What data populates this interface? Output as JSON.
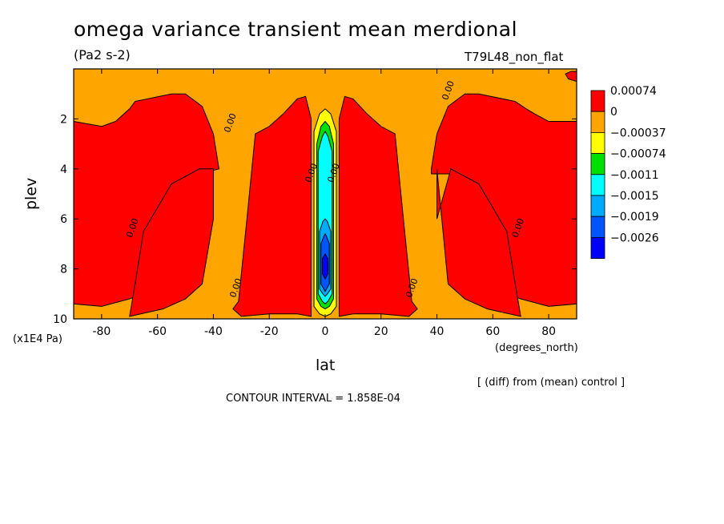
{
  "chart_data": {
    "type": "heatmap",
    "title": "omega variance transient mean merdional",
    "units": "(Pa2 s-2)",
    "run_label": "T79L48_non_flat",
    "xlabel": "lat",
    "x_units": "(degrees_north)",
    "ylabel": "plev",
    "y_units": "(x1E4 Pa)",
    "xlim": [
      -90,
      90
    ],
    "ylim": [
      10,
      0
    ],
    "x_ticks": [
      -80,
      -60,
      -40,
      -20,
      0,
      20,
      40,
      60,
      80
    ],
    "y_ticks": [
      2,
      4,
      6,
      8,
      10
    ],
    "colorbar_labels": [
      "0.00074",
      "0",
      "−0.00037",
      "−0.00074",
      "−0.0011",
      "−0.0015",
      "−0.0019",
      "−0.0026"
    ],
    "colorbar_colors": [
      "#ff0000",
      "#ffa500",
      "#ffff00",
      "#00e000",
      "#00ffff",
      "#00aaff",
      "#0055ff",
      "#0000ff"
    ],
    "contour_label": "0.00",
    "contour_interval_text": "CONTOUR INTERVAL = 1.858E-04",
    "note": "[ (diff) from (mean) control ]",
    "regions": [
      {
        "fill": "#ff0000",
        "lat": [
          -90,
          -80,
          -75,
          -72,
          -70,
          -68,
          -55,
          -50,
          -44,
          -40,
          -38,
          -45,
          -50,
          -60,
          -70,
          -80,
          -90
        ],
        "plev": [
          2.1,
          2.3,
          2.1,
          1.8,
          1.6,
          1.3,
          1.0,
          1.0,
          1.5,
          2.6,
          4.0,
          4.2,
          4.8,
          8.8,
          9.2,
          9.5,
          9.4
        ],
        "path_note": "south red tongue"
      },
      {
        "fill": "#ff0000",
        "lat": [
          -70,
          -58,
          -50,
          -44,
          -40,
          -40,
          -45,
          -55,
          -65,
          -68
        ],
        "plev": [
          9.9,
          9.6,
          9.2,
          8.6,
          6.0,
          4.0,
          4.0,
          4.6,
          6.5,
          8.6
        ]
      },
      {
        "fill": "#ff0000",
        "lat": [
          -31,
          -28,
          -25,
          -20,
          -15,
          -10,
          -7,
          -5,
          -5,
          -10,
          -20,
          -30,
          -33
        ],
        "plev": [
          9.3,
          6.0,
          2.6,
          2.3,
          1.8,
          1.2,
          1.1,
          2.0,
          9.9,
          9.8,
          9.8,
          9.9,
          9.6
        ]
      },
      {
        "fill": "#ff0000",
        "lat": [
          5,
          7,
          10,
          15,
          20,
          25,
          28,
          31,
          33,
          30,
          20,
          10,
          5
        ],
        "plev": [
          2.0,
          1.1,
          1.2,
          1.8,
          2.3,
          2.6,
          6.0,
          9.3,
          9.6,
          9.9,
          9.8,
          9.8,
          9.9
        ]
      },
      {
        "fill": "#ff0000",
        "lat": [
          38,
          40,
          44,
          50,
          55,
          68,
          72,
          75,
          80,
          90,
          90,
          80,
          70,
          60,
          50,
          45,
          38
        ],
        "plev": [
          4.0,
          2.6,
          1.5,
          1.0,
          1.0,
          1.3,
          1.6,
          1.8,
          2.1,
          2.1,
          9.4,
          9.5,
          9.2,
          8.8,
          4.8,
          4.2,
          4.2
        ]
      },
      {
        "fill": "#ff0000",
        "lat": [
          40,
          40,
          45,
          55,
          65,
          68,
          70,
          58,
          50,
          44
        ],
        "plev": [
          4.0,
          6.0,
          4.0,
          4.6,
          6.5,
          8.6,
          9.9,
          9.6,
          9.2,
          8.6
        ]
      },
      {
        "fill": "#ff0000",
        "lat": [
          86,
          88,
          90,
          90,
          87
        ],
        "plev": [
          0.2,
          0.1,
          0.1,
          0.5,
          0.4
        ]
      },
      {
        "fill": "#ffff00",
        "lat": [
          -4,
          -2,
          0,
          2,
          4,
          4,
          2,
          0,
          -2,
          -4
        ],
        "plev": [
          2.5,
          1.8,
          1.6,
          1.8,
          2.5,
          9.5,
          9.8,
          9.9,
          9.8,
          9.5
        ]
      },
      {
        "fill": "#00e000",
        "lat": [
          -3,
          -1.5,
          0,
          1.5,
          3,
          3,
          1.5,
          0,
          -1.5,
          -3
        ],
        "plev": [
          3.0,
          2.3,
          2.1,
          2.3,
          3.0,
          9.2,
          9.5,
          9.6,
          9.5,
          9.2
        ]
      },
      {
        "fill": "#00ffff",
        "lat": [
          -2.5,
          -1,
          0,
          1,
          2.5,
          2.5,
          1,
          0,
          -1,
          -2.5
        ],
        "plev": [
          3.3,
          2.7,
          2.5,
          2.7,
          3.3,
          9.0,
          9.3,
          9.4,
          9.3,
          9.0
        ]
      },
      {
        "fill": "#00aaff",
        "lat": [
          -2,
          -0.8,
          0,
          0.8,
          2,
          2,
          0.8,
          0,
          -0.8,
          -2
        ],
        "plev": [
          6.5,
          6.1,
          6.0,
          6.1,
          6.5,
          8.8,
          9.0,
          9.1,
          9.0,
          8.8
        ]
      },
      {
        "fill": "#0055ff",
        "lat": [
          -1.5,
          -0.5,
          0,
          0.5,
          1.5,
          1.5,
          0.5,
          0,
          -0.5,
          -1.5
        ],
        "plev": [
          7.0,
          6.7,
          6.6,
          6.7,
          7.0,
          8.6,
          8.8,
          8.9,
          8.8,
          8.6
        ]
      },
      {
        "fill": "#0000ff",
        "lat": [
          -1,
          0,
          1,
          1,
          0,
          -1
        ],
        "plev": [
          7.6,
          7.4,
          7.6,
          8.2,
          8.4,
          8.2
        ]
      }
    ],
    "contour_labels_at": [
      {
        "lat": -33,
        "plev": 2.2
      },
      {
        "lat": -68,
        "plev": 6.4
      },
      {
        "lat": -31,
        "plev": 8.8
      },
      {
        "lat": -4,
        "plev": 4.2
      },
      {
        "lat": 4,
        "plev": 4.2
      },
      {
        "lat": 32,
        "plev": 8.8
      },
      {
        "lat": 45,
        "plev": 0.9
      },
      {
        "lat": 70,
        "plev": 6.4
      }
    ]
  }
}
